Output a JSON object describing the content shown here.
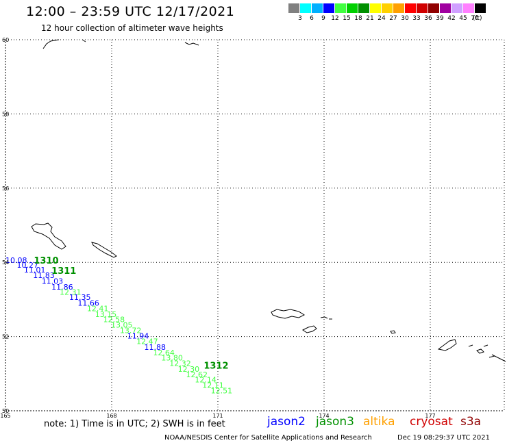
{
  "header": {
    "title": "12:00 – 23:59 UTC 12/17/2021",
    "subtitle": "12 hour collection of altimeter wave heights"
  },
  "legend": {
    "unit": "(ft)",
    "items": [
      {
        "label": "3",
        "color": "#808080"
      },
      {
        "label": "6",
        "color": "#00ffff"
      },
      {
        "label": "9",
        "color": "#00b0ff"
      },
      {
        "label": "12",
        "color": "#0000ff"
      },
      {
        "label": "15",
        "color": "#40ff40"
      },
      {
        "label": "18",
        "color": "#00d000"
      },
      {
        "label": "21",
        "color": "#009000"
      },
      {
        "label": "24",
        "color": "#ffff00"
      },
      {
        "label": "27",
        "color": "#ffd000"
      },
      {
        "label": "30",
        "color": "#ffa000"
      },
      {
        "label": "33",
        "color": "#ff0000"
      },
      {
        "label": "36",
        "color": "#d00000"
      },
      {
        "label": "39",
        "color": "#900000"
      },
      {
        "label": "42",
        "color": "#a000a0"
      },
      {
        "label": "45",
        "color": "#d0a0ff"
      },
      {
        "label": "70",
        "color": "#ff80ff"
      },
      {
        "label": "",
        "color": "#000000"
      }
    ]
  },
  "map": {
    "lon_ticks": [
      "165",
      "168",
      "171",
      "174",
      "177"
    ],
    "lat_ticks": [
      "60",
      "58",
      "56",
      "54",
      "52",
      "50"
    ],
    "pass_labels": [
      {
        "text": "1310",
        "color": "#009000",
        "lon": 165.8,
        "lat": 54.06
      },
      {
        "text": "1311",
        "color": "#009000",
        "lon": 166.3,
        "lat": 53.78
      },
      {
        "text": "1312",
        "color": "#009000",
        "lon": 170.6,
        "lat": 51.23
      }
    ],
    "wave_heights": [
      {
        "v": "10.08",
        "c": "#0000ff",
        "lon": 165.0,
        "lat": 54.06
      },
      {
        "v": "10.27",
        "c": "#0000ff",
        "lon": 165.32,
        "lat": 53.93
      },
      {
        "v": "11.01",
        "c": "#0000ff",
        "lon": 165.52,
        "lat": 53.8
      },
      {
        "v": "11.83",
        "c": "#0000ff",
        "lon": 165.78,
        "lat": 53.65
      },
      {
        "v": "11.03",
        "c": "#0000ff",
        "lon": 166.02,
        "lat": 53.5
      },
      {
        "v": "11.86",
        "c": "#0000ff",
        "lon": 166.3,
        "lat": 53.34
      },
      {
        "v": "12.31",
        "c": "#40ff40",
        "lon": 166.53,
        "lat": 53.2
      },
      {
        "v": "11.35",
        "c": "#0000ff",
        "lon": 166.8,
        "lat": 53.06
      },
      {
        "v": "11.66",
        "c": "#0000ff",
        "lon": 167.04,
        "lat": 52.91
      },
      {
        "v": "12.41",
        "c": "#40ff40",
        "lon": 167.3,
        "lat": 52.76
      },
      {
        "v": "13.15",
        "c": "#40ff40",
        "lon": 167.53,
        "lat": 52.6
      },
      {
        "v": "12.58",
        "c": "#40ff40",
        "lon": 167.76,
        "lat": 52.46
      },
      {
        "v": "13.05",
        "c": "#40ff40",
        "lon": 167.98,
        "lat": 52.32
      },
      {
        "v": "13.72",
        "c": "#40ff40",
        "lon": 168.23,
        "lat": 52.17
      },
      {
        "v": "11.94",
        "c": "#0000ff",
        "lon": 168.44,
        "lat": 52.02
      },
      {
        "v": "12.47",
        "c": "#40ff40",
        "lon": 168.7,
        "lat": 51.87
      },
      {
        "v": "11.88",
        "c": "#0000ff",
        "lon": 168.92,
        "lat": 51.72
      },
      {
        "v": "12.64",
        "c": "#40ff40",
        "lon": 169.17,
        "lat": 51.57
      },
      {
        "v": "13.80",
        "c": "#40ff40",
        "lon": 169.4,
        "lat": 51.43
      },
      {
        "v": "12.32",
        "c": "#40ff40",
        "lon": 169.63,
        "lat": 51.28
      },
      {
        "v": "12.30",
        "c": "#40ff40",
        "lon": 169.87,
        "lat": 51.13
      },
      {
        "v": "12.62",
        "c": "#40ff40",
        "lon": 170.1,
        "lat": 50.98
      },
      {
        "v": "12.14",
        "c": "#40ff40",
        "lon": 170.35,
        "lat": 50.84
      },
      {
        "v": "12.11",
        "c": "#40ff40",
        "lon": 170.56,
        "lat": 50.69
      },
      {
        "v": "12.51",
        "c": "#40ff40",
        "lon": 170.8,
        "lat": 50.54
      }
    ]
  },
  "footer": {
    "note": "note: 1) Time is in UTC; 2) SWH is in feet",
    "satellites": [
      {
        "name": "jason2",
        "color": "#0000ff"
      },
      {
        "name": "jason3",
        "color": "#009000"
      },
      {
        "name": "altika",
        "color": "#ffa000"
      },
      {
        "name": "cryosat",
        "color": "#d00000"
      },
      {
        "name": "s3a",
        "color": "#900000"
      }
    ],
    "credit": "NOAA/NESDIS Center for Satellite Applications and Research",
    "timestamp": "Dec 19 08:29:37 UTC 2021"
  }
}
